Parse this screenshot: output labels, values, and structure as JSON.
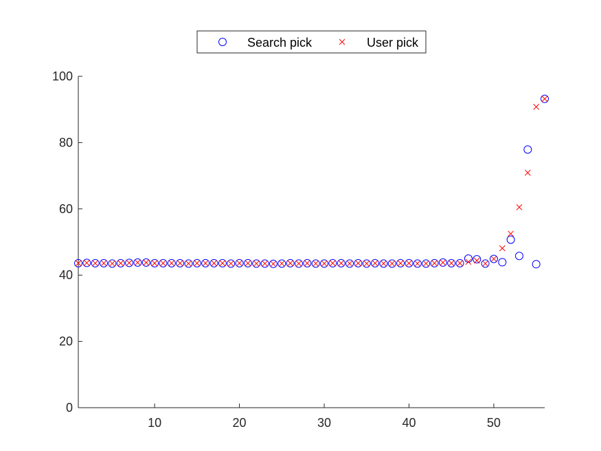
{
  "chart_data": {
    "type": "scatter",
    "title": "",
    "xlabel": "",
    "ylabel": "",
    "xlim": [
      1,
      56
    ],
    "ylim": [
      0,
      100
    ],
    "xticks": [
      10,
      20,
      30,
      40,
      50
    ],
    "yticks": [
      0,
      20,
      40,
      60,
      80,
      100
    ],
    "grid": false,
    "legend_position": "top-center",
    "series": [
      {
        "name": "Search pick",
        "marker": "circle",
        "color": "#0000ff",
        "x": [
          1,
          2,
          3,
          4,
          5,
          6,
          7,
          8,
          9,
          10,
          11,
          12,
          13,
          14,
          15,
          16,
          17,
          18,
          19,
          20,
          21,
          22,
          23,
          24,
          25,
          26,
          27,
          28,
          29,
          30,
          31,
          32,
          33,
          34,
          35,
          36,
          37,
          38,
          39,
          40,
          41,
          42,
          43,
          44,
          45,
          46,
          47,
          48,
          49,
          50,
          51,
          52,
          53,
          54,
          55,
          56
        ],
        "y": [
          43.6,
          43.7,
          43.6,
          43.6,
          43.5,
          43.6,
          43.7,
          43.8,
          43.8,
          43.6,
          43.6,
          43.6,
          43.6,
          43.5,
          43.6,
          43.6,
          43.6,
          43.6,
          43.5,
          43.6,
          43.6,
          43.5,
          43.5,
          43.4,
          43.5,
          43.6,
          43.5,
          43.6,
          43.5,
          43.5,
          43.6,
          43.6,
          43.5,
          43.6,
          43.5,
          43.6,
          43.5,
          43.5,
          43.6,
          43.6,
          43.5,
          43.5,
          43.6,
          43.8,
          43.6,
          43.6,
          45.0,
          44.8,
          43.5,
          44.9,
          43.9,
          50.7,
          45.8,
          77.9,
          43.3,
          93.2
        ]
      },
      {
        "name": "User pick",
        "marker": "x",
        "color": "#ff0000",
        "x": [
          1,
          2,
          3,
          4,
          5,
          6,
          7,
          8,
          9,
          10,
          11,
          12,
          13,
          14,
          15,
          16,
          17,
          18,
          19,
          20,
          21,
          22,
          23,
          24,
          25,
          26,
          27,
          28,
          29,
          30,
          31,
          32,
          33,
          34,
          35,
          36,
          37,
          38,
          39,
          40,
          41,
          42,
          43,
          44,
          45,
          46,
          47,
          48,
          49,
          50,
          51,
          52,
          53,
          54,
          55,
          56
        ],
        "y": [
          43.6,
          43.7,
          43.6,
          43.6,
          43.5,
          43.6,
          43.7,
          43.8,
          43.8,
          43.6,
          43.6,
          43.6,
          43.6,
          43.5,
          43.6,
          43.6,
          43.6,
          43.6,
          43.5,
          43.6,
          43.6,
          43.5,
          43.5,
          43.4,
          43.5,
          43.6,
          43.5,
          43.6,
          43.5,
          43.5,
          43.6,
          43.6,
          43.5,
          43.6,
          43.5,
          43.6,
          43.5,
          43.5,
          43.6,
          43.6,
          43.5,
          43.5,
          43.6,
          43.8,
          43.6,
          43.6,
          44.0,
          44.4,
          43.5,
          44.9,
          48.1,
          52.5,
          60.5,
          70.9,
          90.8,
          93.2
        ]
      }
    ]
  }
}
